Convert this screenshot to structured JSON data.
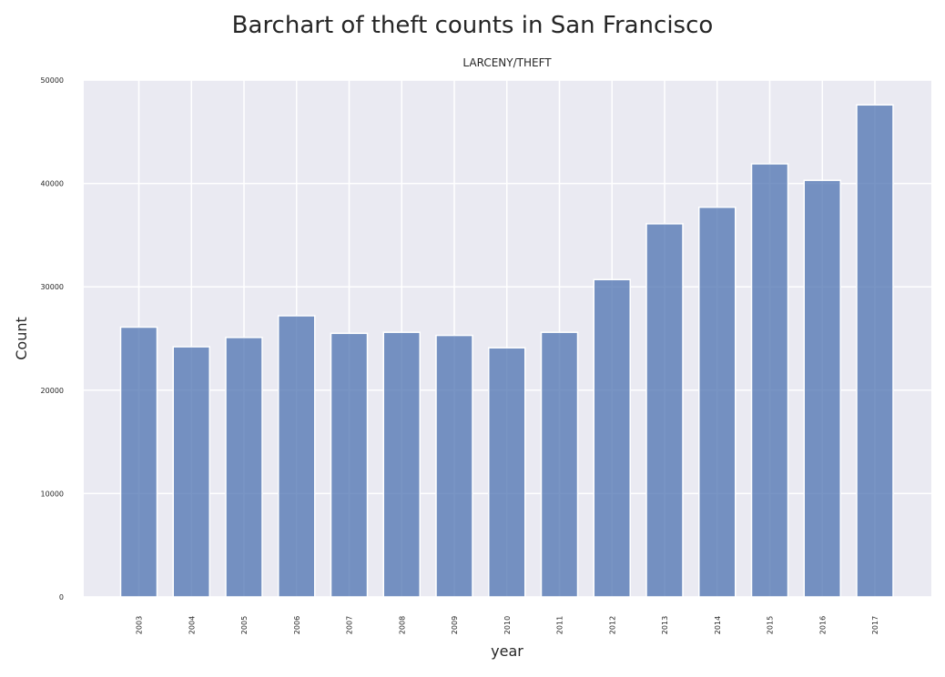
{
  "chart_data": {
    "type": "bar",
    "title": "Barchart of theft counts in San Francisco",
    "subtitle": "LARCENY/THEFT",
    "xlabel": "year",
    "ylabel": "Count",
    "categories": [
      "2003",
      "2004",
      "2005",
      "2006",
      "2007",
      "2008",
      "2009",
      "2010",
      "2011",
      "2012",
      "2013",
      "2014",
      "2015",
      "2016",
      "2017"
    ],
    "values": [
      26100,
      24200,
      25100,
      27200,
      25500,
      25600,
      25300,
      24100,
      25600,
      30700,
      36100,
      37700,
      41900,
      40300,
      47600
    ],
    "ylim": [
      0,
      50000
    ],
    "yticks": [
      "0",
      "10000",
      "20000",
      "30000",
      "40000",
      "50000"
    ],
    "grid": true,
    "colors": {
      "bar": "#4c72b0",
      "background": "#eaeaf2",
      "grid": "#ffffff"
    }
  }
}
